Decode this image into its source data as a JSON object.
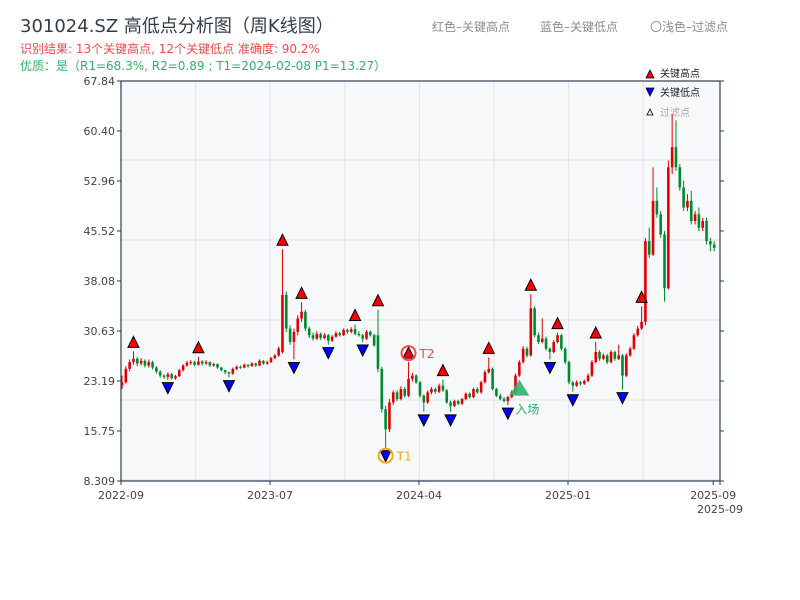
{
  "header": {
    "title": "301024.SZ 高低点分析图（周K线图）",
    "result_line": "识别结果: 13个关键高点, 12个关键低点   准确度: 90.2%",
    "quality_line": "优质：是（R1=68.3%, R2=0.89 ; T1=2024-02-08 P1=13.27）"
  },
  "top_legend": {
    "red": "红色–关键高点",
    "blue": "蓝色–关键低点",
    "faded": "〇浅色–过滤点"
  },
  "chart_data": {
    "type": "candlestick",
    "title": "301024.SZ 高低点分析图（周K线图）",
    "colors": {
      "up": "#e00000",
      "down": "#008a30",
      "high_marker": "#ff0000",
      "low_marker": "#0000ff",
      "t1": "#f5a623",
      "t2": "#ef4b4b",
      "entry": "#2fb36a",
      "axis": "#2c3e50",
      "plot_bg": "#f6f8fa"
    },
    "ylim": [
      8.309,
      67.84
    ],
    "y_ticks": [
      "67.84",
      "60.40",
      "52.96",
      "45.52",
      "38.08",
      "30.63",
      "23.19",
      "15.75",
      "8.309"
    ],
    "x_ticks": [
      {
        "label": "2022-09",
        "index": 0
      },
      {
        "label": "2023-07",
        "index": 39
      },
      {
        "label": "2024-04",
        "index": 78
      },
      {
        "label": "2025-01",
        "index": 117
      },
      {
        "label": "2025-09",
        "index": 155
      },
      {
        "label": "2025-09",
        "index": 156
      }
    ],
    "candles_ohlc": [
      [
        22.5,
        24,
        22,
        23
      ],
      [
        23,
        25.4,
        22.8,
        25
      ],
      [
        25,
        26.4,
        24.6,
        26
      ],
      [
        26,
        27.6,
        25.6,
        26.5
      ],
      [
        26.5,
        26.8,
        25.4,
        25.8
      ],
      [
        25.8,
        26.6,
        25.5,
        26.2
      ],
      [
        26.2,
        26.4,
        25.2,
        25.5
      ],
      [
        25.5,
        26.4,
        25.2,
        26
      ],
      [
        26,
        26.2,
        24.9,
        25.2
      ],
      [
        25.2,
        25.4,
        24.3,
        24.6
      ],
      [
        24.6,
        24.8,
        23.7,
        24
      ],
      [
        24,
        24.2,
        23.5,
        23.8
      ],
      [
        23.8,
        24.5,
        23.4,
        24.2
      ],
      [
        24.2,
        24.4,
        23.4,
        23.6
      ],
      [
        23.6,
        24.1,
        23.4,
        23.9
      ],
      [
        23.9,
        25,
        23.8,
        24.8
      ],
      [
        24.8,
        25.7,
        24.6,
        25.5
      ],
      [
        25.5,
        26.2,
        25.3,
        25.9
      ],
      [
        25.9,
        26.3,
        25.6,
        26
      ],
      [
        26,
        26.2,
        25.4,
        25.6
      ],
      [
        25.6,
        26.8,
        25.5,
        26.1
      ],
      [
        26.1,
        26.3,
        25.5,
        25.8
      ],
      [
        25.8,
        26.3,
        25.6,
        26
      ],
      [
        26,
        26.1,
        25.3,
        25.5
      ],
      [
        25.5,
        25.9,
        25.3,
        25.7
      ],
      [
        25.7,
        25.8,
        25,
        25.2
      ],
      [
        25.2,
        25.3,
        24.6,
        24.8
      ],
      [
        24.8,
        24.9,
        24.2,
        24.5
      ],
      [
        24.5,
        24.6,
        23.7,
        24.3
      ],
      [
        24.3,
        25.2,
        24.1,
        25
      ],
      [
        25,
        25.5,
        24.8,
        25.3
      ],
      [
        25.3,
        25.5,
        25,
        25.2
      ],
      [
        25.2,
        25.8,
        25.1,
        25.6
      ],
      [
        25.6,
        25.7,
        25.2,
        25.4
      ],
      [
        25.4,
        26,
        25.3,
        25.8
      ],
      [
        25.8,
        25.9,
        25.3,
        25.5
      ],
      [
        25.5,
        26.4,
        25.4,
        26.2
      ],
      [
        26.2,
        26.3,
        25.6,
        25.8
      ],
      [
        25.8,
        26.2,
        25.6,
        26
      ],
      [
        26,
        26.8,
        25.9,
        26.6
      ],
      [
        26.6,
        27.2,
        26.4,
        27
      ],
      [
        27,
        28.3,
        26.8,
        28
      ],
      [
        27.5,
        42.8,
        27.3,
        36
      ],
      [
        36,
        36.5,
        30.5,
        31
      ],
      [
        31,
        31.5,
        28.6,
        29
      ],
      [
        29,
        31,
        26.4,
        30.5
      ],
      [
        30.5,
        33,
        30,
        32.5
      ],
      [
        32.5,
        34.9,
        32,
        33.5
      ],
      [
        33.5,
        33.8,
        30.6,
        31
      ],
      [
        31,
        31.3,
        29.6,
        30
      ],
      [
        30,
        30.4,
        29.2,
        29.5
      ],
      [
        29.5,
        30.6,
        29.3,
        30.2
      ],
      [
        30.2,
        30.4,
        29.3,
        29.6
      ],
      [
        29.6,
        30.3,
        29.4,
        30
      ],
      [
        30,
        30.2,
        28.6,
        29.2
      ],
      [
        29.2,
        30,
        29,
        29.8
      ],
      [
        29.8,
        30.6,
        29.6,
        30.3
      ],
      [
        30.3,
        30.5,
        29.8,
        30
      ],
      [
        30,
        31,
        29.9,
        30.8
      ],
      [
        30.8,
        31,
        30.2,
        30.5
      ],
      [
        30.5,
        31.2,
        30.3,
        30.9
      ],
      [
        30.9,
        31.6,
        30,
        30.2
      ],
      [
        30.2,
        30.6,
        29.8,
        30
      ],
      [
        30,
        30.2,
        29,
        29.5
      ],
      [
        29.5,
        30.8,
        29.3,
        30.5
      ],
      [
        30.5,
        30.7,
        29.8,
        30
      ],
      [
        30,
        30.2,
        28.3,
        28.5
      ],
      [
        30,
        33.8,
        24.5,
        25
      ],
      [
        25,
        25.3,
        18.5,
        19
      ],
      [
        19,
        19.5,
        13.27,
        16
      ],
      [
        16,
        20.5,
        15.6,
        20
      ],
      [
        20,
        21.8,
        19.6,
        21.5
      ],
      [
        21.5,
        21.8,
        20.2,
        20.5
      ],
      [
        20.5,
        22.4,
        20.3,
        22
      ],
      [
        22,
        22.3,
        20.7,
        21
      ],
      [
        21,
        26,
        20.8,
        23.5
      ],
      [
        23.5,
        24.4,
        23.1,
        24
      ],
      [
        24,
        24.2,
        22.8,
        23
      ],
      [
        23,
        23.2,
        20.7,
        21
      ],
      [
        21,
        21.2,
        18.6,
        20
      ],
      [
        20,
        21.8,
        19.8,
        21.5
      ],
      [
        21.5,
        22.3,
        21.2,
        22
      ],
      [
        22,
        22.2,
        21.3,
        21.6
      ],
      [
        21.6,
        22.8,
        21.4,
        22.5
      ],
      [
        22.5,
        23.4,
        21.6,
        21.8
      ],
      [
        21.8,
        22,
        19.8,
        20
      ],
      [
        20,
        20.3,
        18.6,
        19.5
      ],
      [
        19.5,
        20.4,
        19.3,
        20.2
      ],
      [
        20.2,
        20.4,
        19.6,
        19.8
      ],
      [
        19.8,
        20.7,
        19.6,
        20.5
      ],
      [
        20.5,
        21.5,
        20.3,
        21.3
      ],
      [
        21.3,
        21.5,
        20.6,
        20.8
      ],
      [
        20.8,
        22.2,
        20.6,
        22
      ],
      [
        22,
        22.3,
        21.3,
        21.5
      ],
      [
        21.5,
        23.2,
        21.3,
        23
      ],
      [
        23,
        24.8,
        22.8,
        24.5
      ],
      [
        24.5,
        26.7,
        24.3,
        25
      ],
      [
        25,
        25.2,
        21.8,
        22
      ],
      [
        22,
        22.2,
        20.8,
        21
      ],
      [
        21,
        21.3,
        20.3,
        20.5
      ],
      [
        20.5,
        20.8,
        20,
        20.2
      ],
      [
        20.2,
        21,
        19.6,
        20.8
      ],
      [
        20.8,
        21.8,
        20.6,
        21.5
      ],
      [
        21.5,
        24.3,
        21.3,
        24
      ],
      [
        24,
        26.3,
        23.8,
        26
      ],
      [
        26,
        28.4,
        25.8,
        28
      ],
      [
        28,
        28.3,
        26.7,
        27
      ],
      [
        27,
        36.1,
        26.8,
        34
      ],
      [
        34,
        34.3,
        29.7,
        30
      ],
      [
        30,
        30.4,
        28.7,
        29
      ],
      [
        29,
        32.5,
        28.8,
        29.5
      ],
      [
        29.5,
        29.8,
        27.7,
        28
      ],
      [
        28,
        28.2,
        26.4,
        27.5
      ],
      [
        27.5,
        29.3,
        27.3,
        29
      ],
      [
        29,
        30.4,
        28.8,
        30
      ],
      [
        30,
        30.2,
        27.7,
        28
      ],
      [
        28,
        28.2,
        25.7,
        26
      ],
      [
        26,
        26.2,
        22.7,
        23
      ],
      [
        23,
        23.2,
        21.6,
        22.5
      ],
      [
        22.5,
        23.3,
        22.3,
        23
      ],
      [
        23,
        23.2,
        22.5,
        22.8
      ],
      [
        22.8,
        23.4,
        22.6,
        23.2
      ],
      [
        23.2,
        24.3,
        23,
        24
      ],
      [
        24,
        26.3,
        23.8,
        26
      ],
      [
        26,
        29,
        25.8,
        27.5
      ],
      [
        27.5,
        27.8,
        26.2,
        26.5
      ],
      [
        26.5,
        27.3,
        26.3,
        27
      ],
      [
        27,
        27.2,
        25.7,
        26
      ],
      [
        26,
        27.8,
        25.8,
        27.5
      ],
      [
        27.5,
        27.7,
        26.2,
        26.5
      ],
      [
        26.5,
        28.6,
        26.3,
        27
      ],
      [
        27,
        27.2,
        21.9,
        24
      ],
      [
        24,
        27.3,
        23.8,
        27
      ],
      [
        27,
        28.3,
        26.8,
        28
      ],
      [
        28,
        30.3,
        27.8,
        30
      ],
      [
        30,
        31.4,
        29.8,
        31
      ],
      [
        31,
        34.3,
        30.8,
        32
      ],
      [
        32,
        44.5,
        31.5,
        44
      ],
      [
        44,
        46,
        41.5,
        42
      ],
      [
        42,
        55,
        41.8,
        50
      ],
      [
        50,
        52,
        47.5,
        48
      ],
      [
        48,
        48.5,
        44.5,
        45
      ],
      [
        45,
        45.5,
        35,
        37
      ],
      [
        37,
        56,
        36.8,
        55
      ],
      [
        55,
        63,
        54,
        58
      ],
      [
        58,
        62,
        54.5,
        55
      ],
      [
        55,
        55.5,
        51.5,
        52
      ],
      [
        52,
        53,
        48.5,
        49
      ],
      [
        49,
        51,
        48.5,
        50
      ],
      [
        50,
        51.5,
        46.5,
        47
      ],
      [
        47,
        48.5,
        46.5,
        48
      ],
      [
        48,
        49,
        45.5,
        46
      ],
      [
        46,
        47.5,
        45.5,
        47
      ],
      [
        47,
        47.5,
        43.5,
        44
      ],
      [
        44,
        44.5,
        42.5,
        43.5
      ],
      [
        43.5,
        44,
        42.5,
        43
      ]
    ],
    "key_highs": [
      3,
      20,
      42,
      47,
      61,
      67,
      75,
      84,
      96,
      107,
      114,
      124,
      136
    ],
    "key_lows": [
      12,
      28,
      45,
      54,
      63,
      69,
      79,
      86,
      101,
      112,
      118,
      131
    ],
    "annotations": {
      "t1": {
        "label": "T1",
        "index": 69,
        "price": 13.27
      },
      "t2": {
        "label": "T2",
        "index": 75,
        "price": 26
      },
      "entry": {
        "label": "入场",
        "index": 104,
        "price": 22.2
      }
    },
    "legend": {
      "high": "关键高点",
      "low": "关键低点",
      "filtered": "过滤点",
      "placement": "top-right"
    },
    "grid": true
  }
}
